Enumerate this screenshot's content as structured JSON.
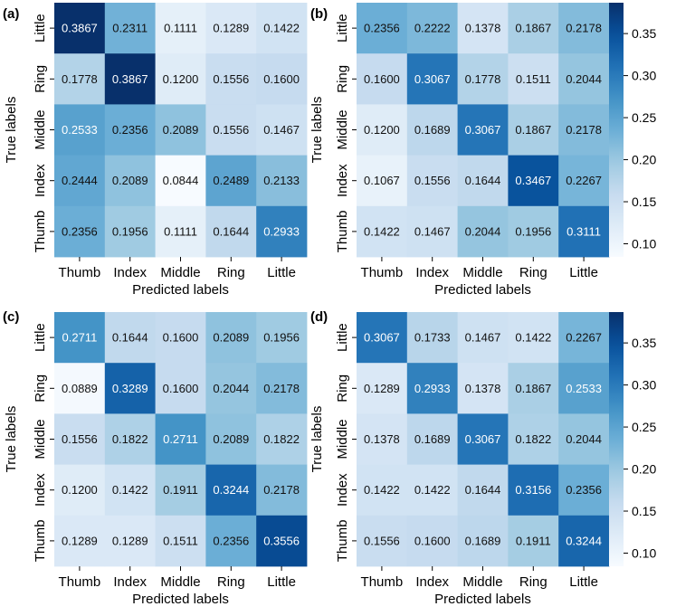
{
  "figure": {
    "colorscale": [
      "#f7fbff",
      "#deebf7",
      "#c6dbef",
      "#9ecae1",
      "#6baed6",
      "#4292c6",
      "#2171b5",
      "#08519c",
      "#08306b"
    ],
    "vmin": 0.0844,
    "vmax": 0.3867
  },
  "chart_data": [
    {
      "type": "heatmap",
      "panel_label": "(a)",
      "xlabel": "Predicted labels",
      "ylabel": "True labels",
      "x_categories": [
        "Thumb",
        "Index",
        "Middle",
        "Ring",
        "Little"
      ],
      "y_categories": [
        "Little",
        "Ring",
        "Middle",
        "Index",
        "Thumb"
      ],
      "values": [
        [
          0.3867,
          0.2311,
          0.1111,
          0.1289,
          0.1422
        ],
        [
          0.1778,
          0.3867,
          0.12,
          0.1556,
          0.16
        ],
        [
          0.2533,
          0.2356,
          0.2089,
          0.1556,
          0.1467
        ],
        [
          0.2444,
          0.2089,
          0.0844,
          0.2489,
          0.2133
        ],
        [
          0.2356,
          0.1956,
          0.1111,
          0.1644,
          0.2933
        ]
      ],
      "value_labels": [
        [
          "0.3867",
          "0.2311",
          "0.1111",
          "0.1289",
          "0.1422"
        ],
        [
          "0.1778",
          "0.3867",
          "0.1200",
          "0.1556",
          "0.1600"
        ],
        [
          "0.2533",
          "0.2356",
          "0.2089",
          "0.1556",
          "0.1467"
        ],
        [
          "0.2444",
          "0.2089",
          "0.0844",
          "0.2489",
          "0.2133"
        ],
        [
          "0.2356",
          "0.1956",
          "0.1111",
          "0.1644",
          "0.2933"
        ]
      ]
    },
    {
      "type": "heatmap",
      "panel_label": "(b)",
      "xlabel": "Predicted labels",
      "ylabel": "True labels",
      "x_categories": [
        "Thumb",
        "Index",
        "Middle",
        "Ring",
        "Little"
      ],
      "y_categories": [
        "Little",
        "Ring",
        "Middle",
        "Index",
        "Thumb"
      ],
      "values": [
        [
          0.2356,
          0.2222,
          0.1378,
          0.1867,
          0.2178
        ],
        [
          0.16,
          0.3067,
          0.1778,
          0.1511,
          0.2044
        ],
        [
          0.12,
          0.1689,
          0.3067,
          0.1867,
          0.2178
        ],
        [
          0.1067,
          0.1556,
          0.1644,
          0.3467,
          0.2267
        ],
        [
          0.1422,
          0.1467,
          0.2044,
          0.1956,
          0.3111
        ]
      ],
      "value_labels": [
        [
          "0.2356",
          "0.2222",
          "0.1378",
          "0.1867",
          "0.2178"
        ],
        [
          "0.1600",
          "0.3067",
          "0.1778",
          "0.1511",
          "0.2044"
        ],
        [
          "0.1200",
          "0.1689",
          "0.3067",
          "0.1867",
          "0.2178"
        ],
        [
          "0.1067",
          "0.1556",
          "0.1644",
          "0.3467",
          "0.2267"
        ],
        [
          "0.1422",
          "0.1467",
          "0.2044",
          "0.1956",
          "0.3111"
        ]
      ],
      "colorbar": {
        "ticks": [
          0.1,
          0.15,
          0.2,
          0.25,
          0.3,
          0.35
        ],
        "tick_labels": [
          "0.10",
          "0.15",
          "0.20",
          "0.25",
          "0.30",
          "0.35"
        ]
      }
    },
    {
      "type": "heatmap",
      "panel_label": "(c)",
      "xlabel": "Predicted labels",
      "ylabel": "True labels",
      "x_categories": [
        "Thumb",
        "Index",
        "Middle",
        "Ring",
        "Little"
      ],
      "y_categories": [
        "Little",
        "Ring",
        "Middle",
        "Index",
        "Thumb"
      ],
      "values": [
        [
          0.2711,
          0.1644,
          0.16,
          0.2089,
          0.1956
        ],
        [
          0.0889,
          0.3289,
          0.16,
          0.2044,
          0.2178
        ],
        [
          0.1556,
          0.1822,
          0.2711,
          0.2089,
          0.1822
        ],
        [
          0.12,
          0.1422,
          0.1911,
          0.3244,
          0.2178
        ],
        [
          0.1289,
          0.1289,
          0.1511,
          0.2356,
          0.3556
        ]
      ],
      "value_labels": [
        [
          "0.2711",
          "0.1644",
          "0.1600",
          "0.2089",
          "0.1956"
        ],
        [
          "0.0889",
          "0.3289",
          "0.1600",
          "0.2044",
          "0.2178"
        ],
        [
          "0.1556",
          "0.1822",
          "0.2711",
          "0.2089",
          "0.1822"
        ],
        [
          "0.1200",
          "0.1422",
          "0.1911",
          "0.3244",
          "0.2178"
        ],
        [
          "0.1289",
          "0.1289",
          "0.1511",
          "0.2356",
          "0.3556"
        ]
      ]
    },
    {
      "type": "heatmap",
      "panel_label": "(d)",
      "xlabel": "Predicted labels",
      "ylabel": "True labels",
      "x_categories": [
        "Thumb",
        "Index",
        "Middle",
        "Ring",
        "Little"
      ],
      "y_categories": [
        "Little",
        "Ring",
        "Middle",
        "Index",
        "Thumb"
      ],
      "values": [
        [
          0.3067,
          0.1733,
          0.1467,
          0.1422,
          0.2267
        ],
        [
          0.1289,
          0.2933,
          0.1378,
          0.1867,
          0.2533
        ],
        [
          0.1378,
          0.1689,
          0.3067,
          0.1822,
          0.2044
        ],
        [
          0.1422,
          0.1422,
          0.1644,
          0.3156,
          0.2356
        ],
        [
          0.1556,
          0.16,
          0.1689,
          0.1911,
          0.3244
        ]
      ],
      "value_labels": [
        [
          "0.3067",
          "0.1733",
          "0.1467",
          "0.1422",
          "0.2267"
        ],
        [
          "0.1289",
          "0.2933",
          "0.1378",
          "0.1867",
          "0.2533"
        ],
        [
          "0.1378",
          "0.1689",
          "0.3067",
          "0.1822",
          "0.2044"
        ],
        [
          "0.1422",
          "0.1422",
          "0.1644",
          "0.3156",
          "0.2356"
        ],
        [
          "0.1556",
          "0.1600",
          "0.1689",
          "0.1911",
          "0.3244"
        ]
      ],
      "colorbar": {
        "ticks": [
          0.1,
          0.15,
          0.2,
          0.25,
          0.3,
          0.35
        ],
        "tick_labels": [
          "0.10",
          "0.15",
          "0.20",
          "0.25",
          "0.30",
          "0.35"
        ]
      }
    }
  ]
}
